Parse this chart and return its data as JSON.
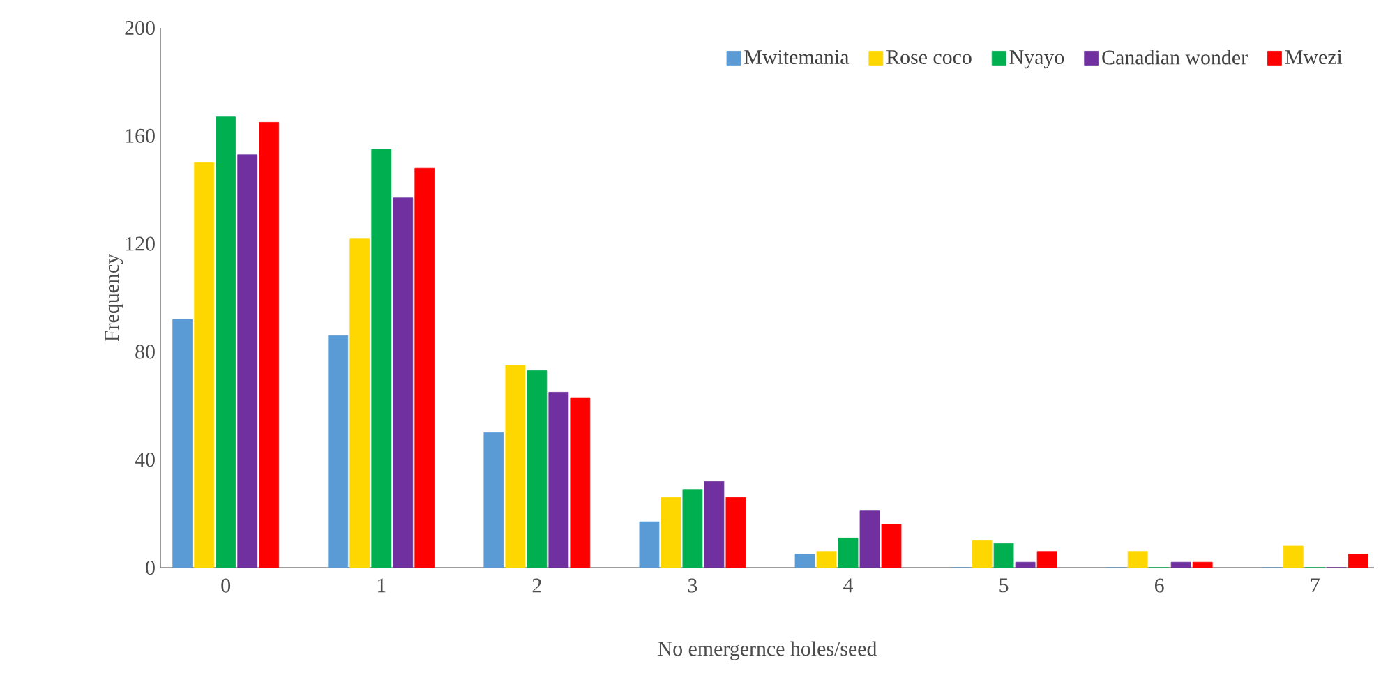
{
  "chart_data": {
    "type": "bar",
    "xlabel": "No emergernce holes/seed",
    "ylabel": "Frequency",
    "categories": [
      "0",
      "1",
      "2",
      "3",
      "4",
      "5",
      "6",
      "7"
    ],
    "series": [
      {
        "name": "Mwitemania",
        "color": "#5b9bd5",
        "values": [
          92,
          86,
          50,
          17,
          5,
          0,
          0,
          0
        ]
      },
      {
        "name": "Rose coco",
        "color": "#ffd700",
        "values": [
          150,
          122,
          75,
          26,
          6,
          10,
          6,
          8
        ]
      },
      {
        "name": "Nyayo",
        "color": "#00b050",
        "values": [
          167,
          155,
          73,
          29,
          11,
          9,
          0,
          0
        ]
      },
      {
        "name": "Canadian wonder",
        "color": "#7030a0",
        "values": [
          153,
          137,
          65,
          32,
          21,
          2,
          2,
          0
        ]
      },
      {
        "name": "Mwezi",
        "color": "#ff0000",
        "values": [
          165,
          148,
          63,
          26,
          16,
          6,
          2,
          5
        ]
      }
    ],
    "ylim": [
      0,
      200
    ],
    "yticks": [
      0,
      40,
      80,
      120,
      160,
      200
    ],
    "grid": false,
    "legend": "top right"
  }
}
